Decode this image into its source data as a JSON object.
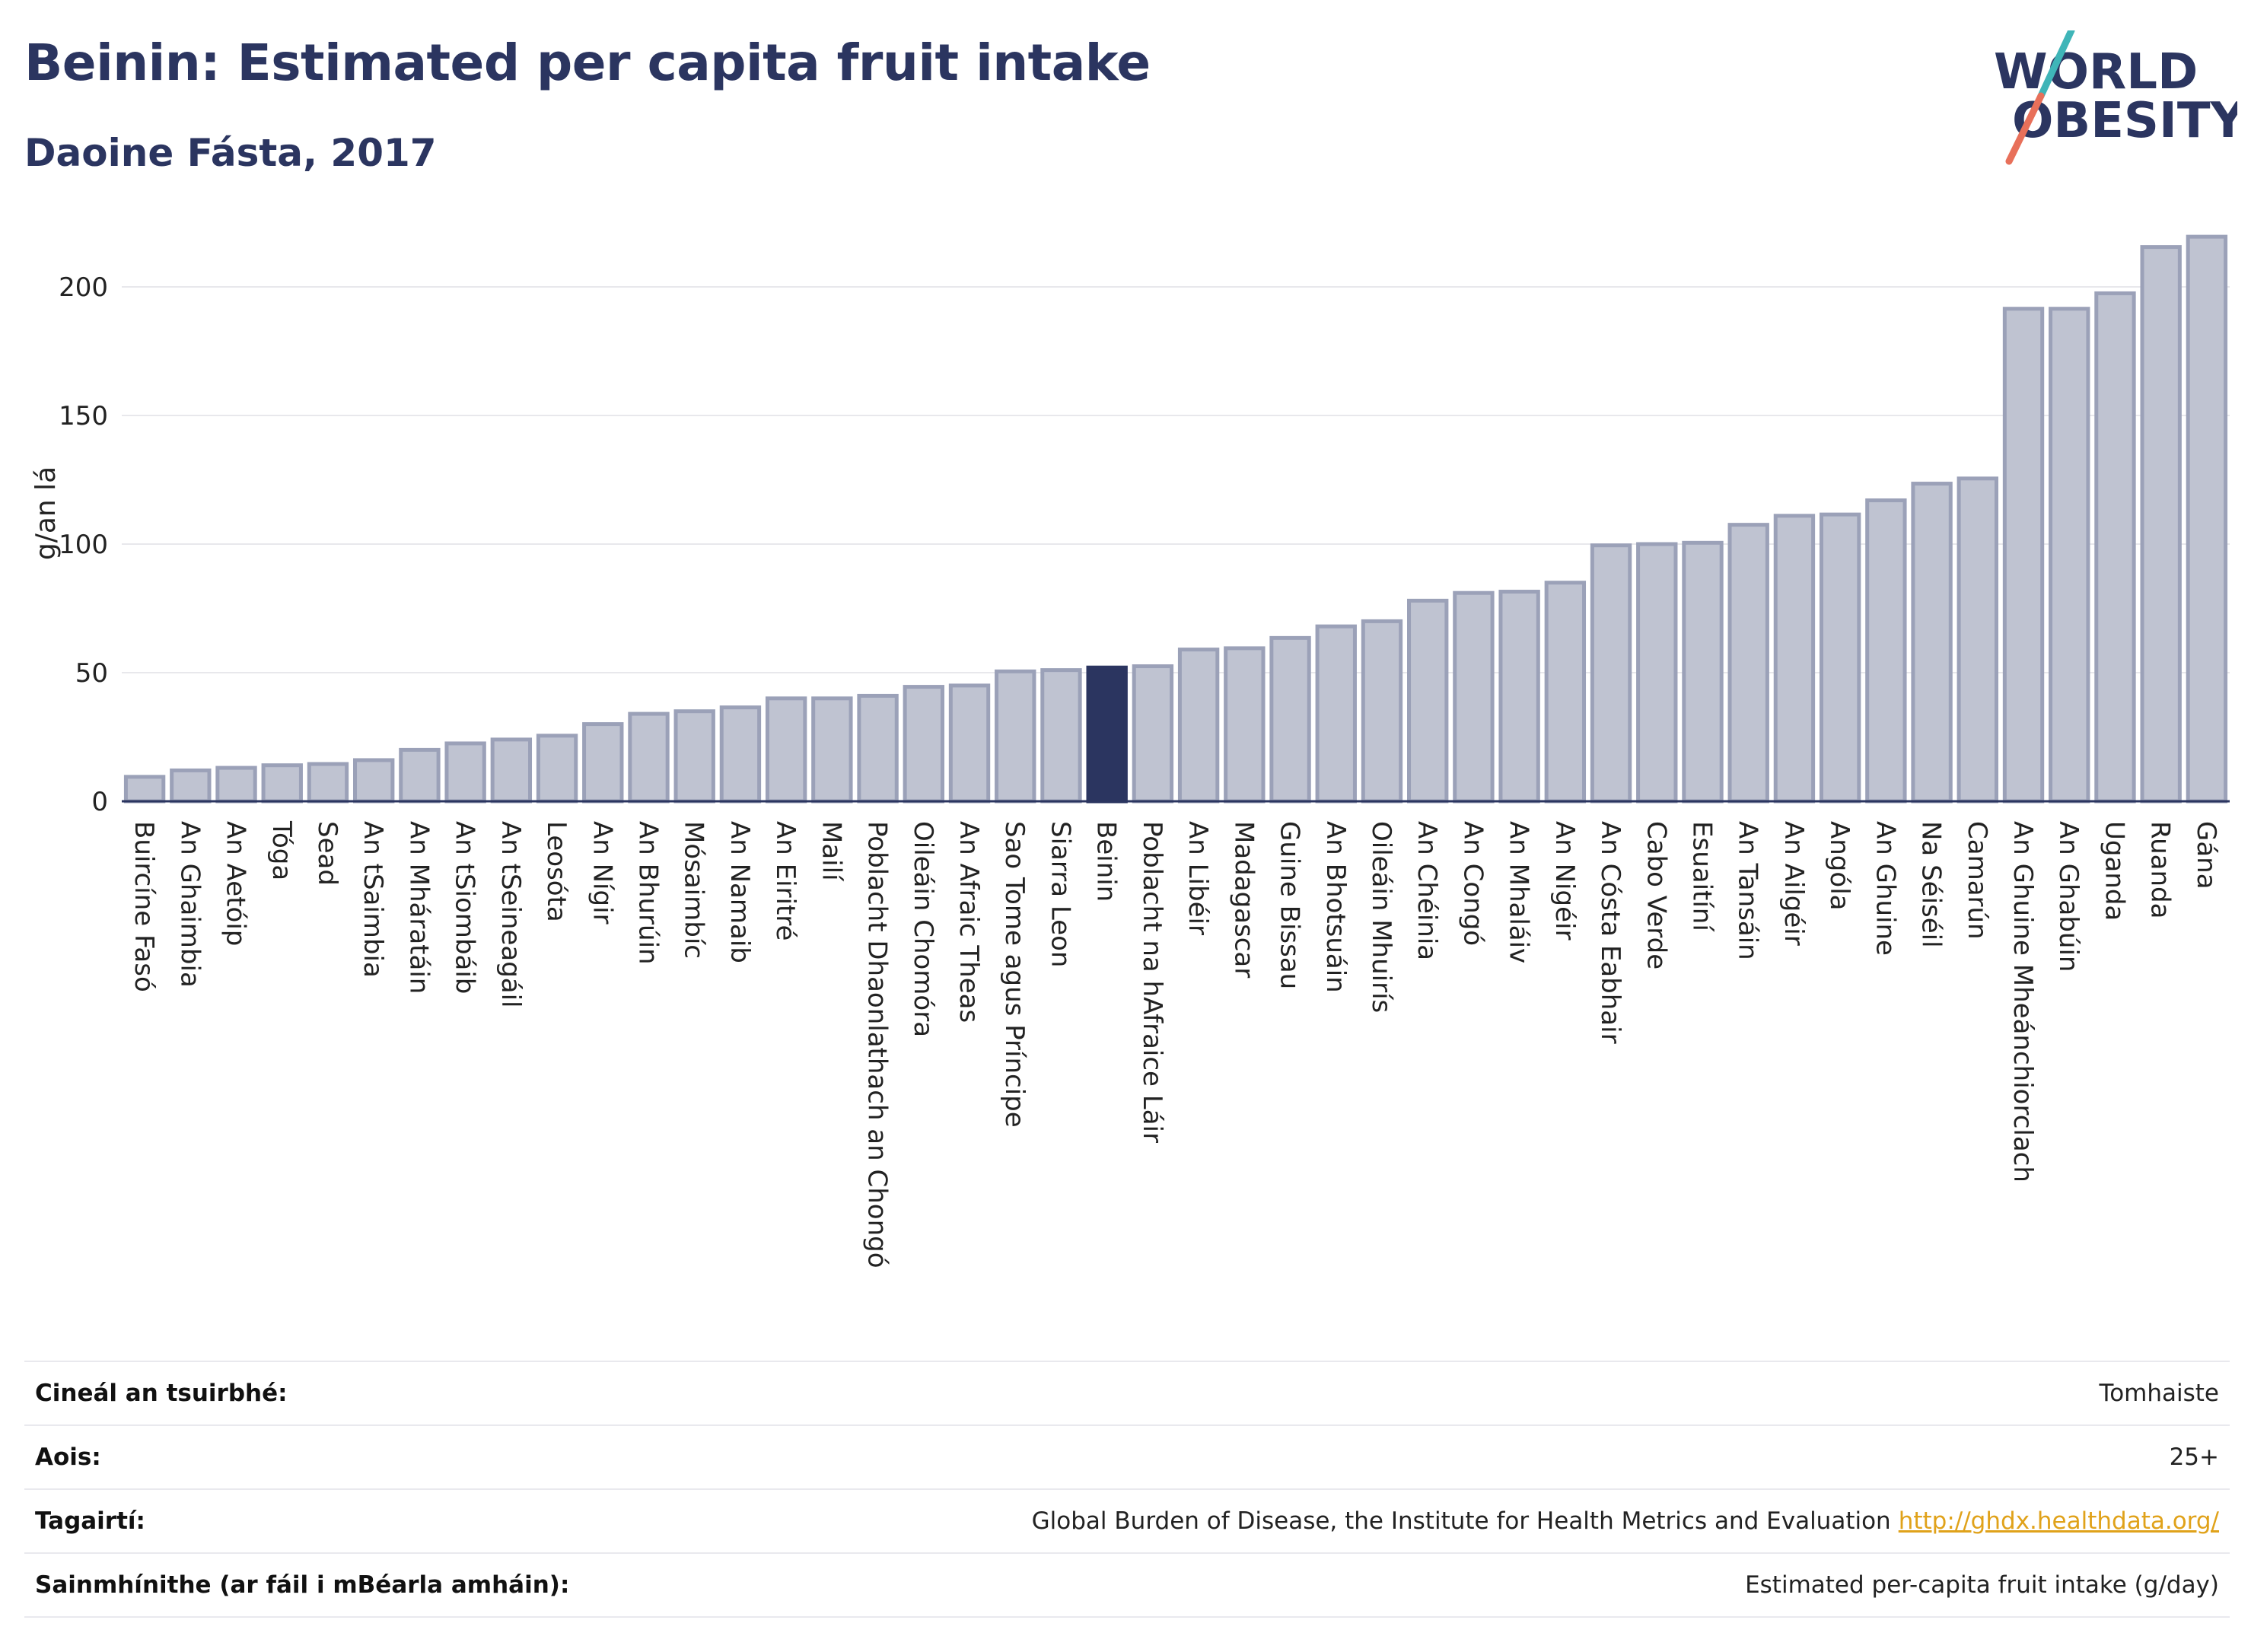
{
  "header": {
    "title": "Beinin: Estimated per capita fruit intake",
    "subtitle": "Daoine Fásta, 2017"
  },
  "logo": {
    "line1": "WORLD",
    "line2": "OBESITY"
  },
  "colors": {
    "title": "#2b3560",
    "bar": "#bfc3d1",
    "bar_border": "#9ba1b8",
    "highlight": "#2b3560",
    "grid": "#e8e8ec",
    "logo_teal": "#3fb5b8",
    "logo_coral": "#e8705a",
    "link": "#e0a21a"
  },
  "chart_data": {
    "type": "bar",
    "ylabel": "g/an lá",
    "ylim": [
      0,
      225
    ],
    "yticks": [
      0,
      50,
      100,
      150,
      200
    ],
    "grid": true,
    "highlight": "Beinin",
    "categories": [
      "Buircíne Fasó",
      "An Ghaimbia",
      "An Aetóip",
      "Tóga",
      "Sead",
      "An tSaimbia",
      "An Mháratáin",
      "An tSiombáib",
      "An tSeineagáil",
      "Leosóta",
      "An Nígir",
      "An Bhurúin",
      "Mósaimbíc",
      "An Namaib",
      "An Eiritré",
      "Mailí",
      "Poblacht Dhaonlathach an Chongó",
      "Oileáin Chomóra",
      "An Afraic Theas",
      "Sao Tome agus Príncipe",
      "Siarra Leon",
      "Beinin",
      "Poblacht na hAfraice Láir",
      "An Libéir",
      "Madagascar",
      "Guine Bissau",
      "An Bhotsuáin",
      "Oileáin Mhuirís",
      "An Chéinia",
      "An Congó",
      "An Mhaláiv",
      "An Nigéir",
      "An Cósta Eabhair",
      "Cabo Verde",
      "Esuaitíní",
      "An Tansáin",
      "An Ailgéir",
      "Angóla",
      "An Ghuine",
      "Na Séiséil",
      "Camarún",
      "An Ghuine Mheánchiorclach",
      "An Ghabúin",
      "Uganda",
      "Ruanda",
      "Gána"
    ],
    "values": [
      9.5,
      12,
      13,
      14,
      14.5,
      16,
      20,
      22.5,
      24,
      25.5,
      30,
      34,
      35,
      36.5,
      40,
      40,
      41,
      44.5,
      45,
      50.5,
      51,
      52,
      52.5,
      59,
      59.5,
      63.5,
      68,
      70,
      78,
      81,
      81.5,
      85,
      99.5,
      100,
      100.5,
      107.5,
      111,
      111.5,
      117,
      123.5,
      125.5,
      191.5,
      191.5,
      197.5,
      215.5,
      219.5
    ]
  },
  "metadata": [
    {
      "label": "Cineál an tsuirbhé:",
      "value": "Tomhaiste"
    },
    {
      "label": "Aois:",
      "value": "25+"
    },
    {
      "label": "Tagairtí:",
      "value": "Global Burden of Disease, the Institute for Health Metrics and Evaluation",
      "link": "http://ghdx.healthdata.org/"
    },
    {
      "label": "Sainmhínithe (ar fáil i mBéarla amháin):",
      "value": "Estimated per-capita fruit intake (g/day)"
    }
  ]
}
